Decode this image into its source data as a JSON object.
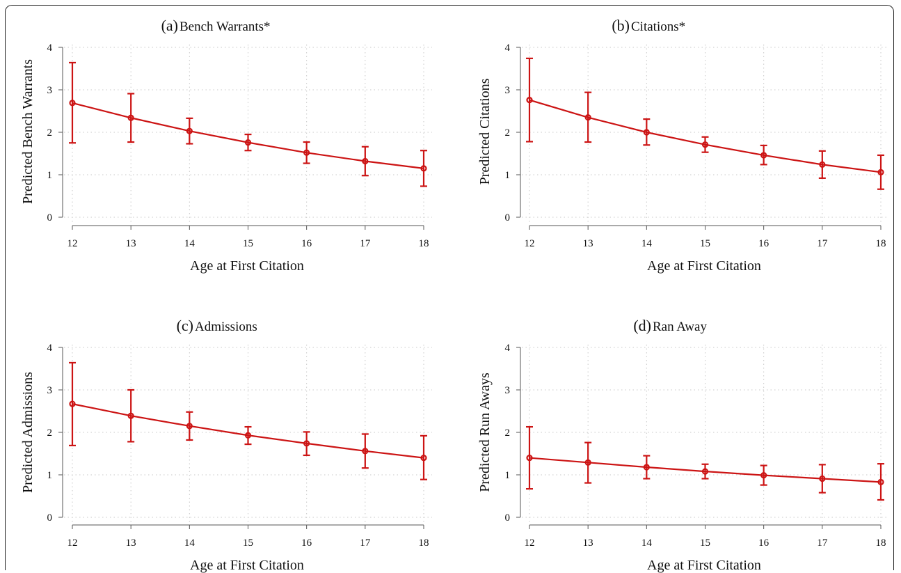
{
  "chart_data": [
    {
      "type": "line",
      "title_tag": "(a)",
      "title": "Bench Warrants*",
      "xlabel": "Age at First Citation",
      "ylabel": "Predicted Bench Warrants",
      "x": [
        12,
        13,
        14,
        15,
        16,
        17,
        18
      ],
      "y": [
        2.69,
        2.34,
        2.03,
        1.76,
        1.52,
        1.32,
        1.15
      ],
      "lower": [
        1.75,
        1.77,
        1.73,
        1.57,
        1.27,
        0.98,
        0.73
      ],
      "upper": [
        3.64,
        2.91,
        2.33,
        1.95,
        1.77,
        1.66,
        1.57
      ],
      "xlim": [
        12,
        18
      ],
      "ylim": [
        0,
        4
      ],
      "yticks": [
        0,
        1,
        2,
        3,
        4
      ],
      "xticks": [
        12,
        13,
        14,
        15,
        16,
        17,
        18
      ],
      "grid": true,
      "color": "#cc1414"
    },
    {
      "type": "line",
      "title_tag": "(b)",
      "title": "Citations*",
      "xlabel": "Age at First Citation",
      "ylabel": "Predicted Citations",
      "x": [
        12,
        13,
        14,
        15,
        16,
        17,
        18
      ],
      "y": [
        2.76,
        2.35,
        2.0,
        1.71,
        1.46,
        1.24,
        1.06
      ],
      "lower": [
        1.78,
        1.77,
        1.7,
        1.53,
        1.24,
        0.92,
        0.66
      ],
      "upper": [
        3.74,
        2.94,
        2.31,
        1.89,
        1.69,
        1.56,
        1.46
      ],
      "xlim": [
        12,
        18
      ],
      "ylim": [
        0,
        4
      ],
      "yticks": [
        0,
        1,
        2,
        3,
        4
      ],
      "xticks": [
        12,
        13,
        14,
        15,
        16,
        17,
        18
      ],
      "grid": true,
      "color": "#cc1414"
    },
    {
      "type": "line",
      "title_tag": "(c)",
      "title": "Admissions",
      "xlabel": "Age at First Citation",
      "ylabel": "Predicted Admissions",
      "x": [
        12,
        13,
        14,
        15,
        16,
        17,
        18
      ],
      "y": [
        2.67,
        2.39,
        2.15,
        1.93,
        1.74,
        1.56,
        1.4
      ],
      "lower": [
        1.69,
        1.78,
        1.82,
        1.72,
        1.46,
        1.16,
        0.89
      ],
      "upper": [
        3.64,
        3.0,
        2.48,
        2.13,
        2.01,
        1.96,
        1.92
      ],
      "xlim": [
        12,
        18
      ],
      "ylim": [
        0,
        4
      ],
      "yticks": [
        0,
        1,
        2,
        3,
        4
      ],
      "xticks": [
        12,
        13,
        14,
        15,
        16,
        17,
        18
      ],
      "grid": true,
      "color": "#cc1414"
    },
    {
      "type": "line",
      "title_tag": "(d)",
      "title": "Ran Away",
      "xlabel": "Age at First Citation",
      "ylabel": "Predicted Run Aways",
      "x": [
        12,
        13,
        14,
        15,
        16,
        17,
        18
      ],
      "y": [
        1.4,
        1.29,
        1.18,
        1.08,
        0.99,
        0.91,
        0.83
      ],
      "lower": [
        0.67,
        0.81,
        0.91,
        0.91,
        0.76,
        0.58,
        0.41
      ],
      "upper": [
        2.13,
        1.76,
        1.45,
        1.25,
        1.22,
        1.24,
        1.26
      ],
      "xlim": [
        12,
        18
      ],
      "ylim": [
        0,
        4
      ],
      "yticks": [
        0,
        1,
        2,
        3,
        4
      ],
      "xticks": [
        12,
        13,
        14,
        15,
        16,
        17,
        18
      ],
      "grid": true,
      "color": "#cc1414"
    }
  ]
}
